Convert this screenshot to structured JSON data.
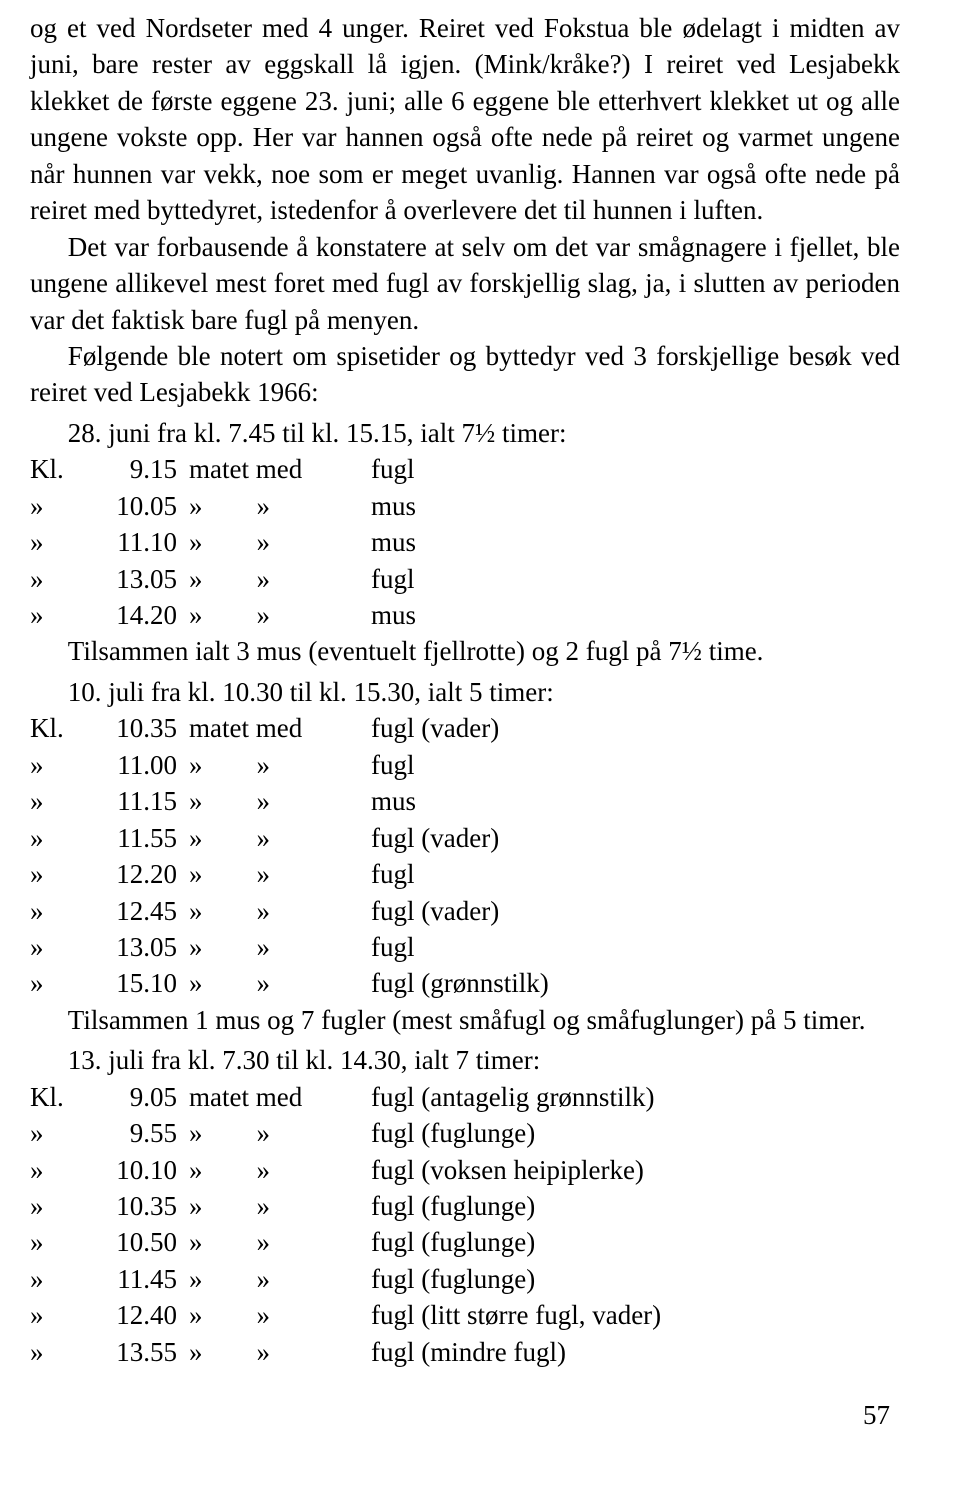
{
  "paragraphs": [
    "og et ved Nordseter med 4 unger. Reiret ved Fokstua ble ødelagt i midten av juni, bare rester av eggskall lå igjen. (Mink/kråke?) I reiret ved Lesjabekk klekket de første eggene 23. juni; alle 6 eggene ble etterhvert klekket ut og alle ungene vokste opp. Her var hannen også ofte nede på reiret og varmet ungene når hunnen var vekk, noe som er meget uvanlig. Hannen var også ofte nede på reiret med byttedyret, istedenfor å overlevere det til hunnen i luften.",
    "Det var forbausende å konstatere at selv om det var smågnagere i fjellet, ble ungene allikevel mest foret med fugl av forskjellig slag, ja, i slutten av perioden var det faktisk bare fugl på menyen.",
    "Følgende ble notert om spisetider og byttedyr ved 3 forskjellige besøk ved reiret ved Lesjabekk 1966:"
  ],
  "observations": [
    {
      "heading": "28. juni fra kl. 7.45 til kl. 15.15, ialt 7½ timer:",
      "rows": [
        {
          "t1": "Kl.",
          "t2": "9.15",
          "a": "matet med",
          "p": "fugl"
        },
        {
          "t1": "»",
          "t2": "10.05",
          "a": "»        »",
          "p": "mus"
        },
        {
          "t1": "»",
          "t2": "11.10",
          "a": "»        »",
          "p": "mus"
        },
        {
          "t1": "»",
          "t2": "13.05",
          "a": "»        »",
          "p": "fugl"
        },
        {
          "t1": "»",
          "t2": "14.20",
          "a": "»        »",
          "p": "mus"
        }
      ],
      "summary": "Tilsammen ialt 3 mus (eventuelt fjellrotte) og 2 fugl på 7½ time."
    },
    {
      "heading": "10. juli fra kl. 10.30 til kl. 15.30, ialt 5 timer:",
      "rows": [
        {
          "t1": "Kl.",
          "t2": "10.35",
          "a": "matet med",
          "p": "fugl (vader)"
        },
        {
          "t1": "»",
          "t2": "11.00",
          "a": "»        »",
          "p": "fugl"
        },
        {
          "t1": "»",
          "t2": "11.15",
          "a": "»        »",
          "p": "mus"
        },
        {
          "t1": "»",
          "t2": "11.55",
          "a": "»        »",
          "p": "fugl (vader)"
        },
        {
          "t1": "»",
          "t2": "12.20",
          "a": "»        »",
          "p": "fugl"
        },
        {
          "t1": "»",
          "t2": "12.45",
          "a": "»        »",
          "p": "fugl (vader)"
        },
        {
          "t1": "»",
          "t2": "13.05",
          "a": "»        »",
          "p": "fugl"
        },
        {
          "t1": "»",
          "t2": "15.10",
          "a": "»        »",
          "p": "fugl (grønnstilk)"
        }
      ],
      "summary": "Tilsammen 1 mus og 7 fugler (mest småfugl og småfuglunger) på 5 timer."
    },
    {
      "heading": "13. juli fra kl. 7.30 til kl. 14.30, ialt 7 timer:",
      "rows": [
        {
          "t1": "Kl.",
          "t2": "9.05",
          "a": "matet med",
          "p": "fugl (antagelig grønnstilk)"
        },
        {
          "t1": "»",
          "t2": "9.55",
          "a": "»        »",
          "p": "fugl (fuglunge)"
        },
        {
          "t1": "»",
          "t2": "10.10",
          "a": "»        »",
          "p": "fugl (voksen heipiplerke)"
        },
        {
          "t1": "»",
          "t2": "10.35",
          "a": "»        »",
          "p": "fugl (fuglunge)"
        },
        {
          "t1": "»",
          "t2": "10.50",
          "a": "»        »",
          "p": "fugl (fuglunge)"
        },
        {
          "t1": "»",
          "t2": "11.45",
          "a": "»        »",
          "p": "fugl (fuglunge)"
        },
        {
          "t1": "»",
          "t2": "12.40",
          "a": "»        »",
          "p": "fugl (litt større fugl, vader)"
        },
        {
          "t1": "»",
          "t2": "13.55",
          "a": "»        »",
          "p": "fugl (mindre fugl)"
        }
      ],
      "summary": ""
    }
  ],
  "page_number": "57"
}
